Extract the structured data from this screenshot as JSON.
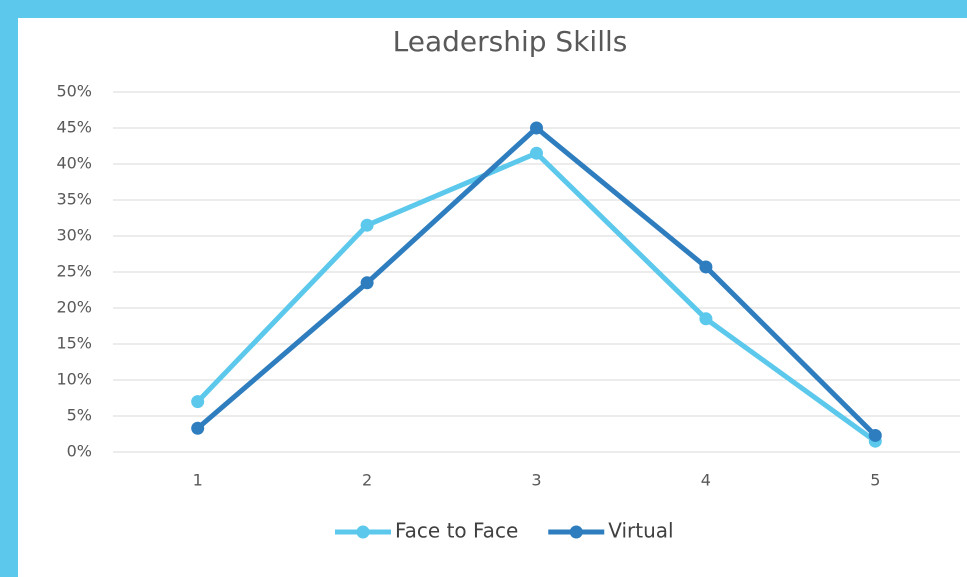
{
  "chart_data": {
    "type": "line",
    "title": "Leadership Skills",
    "categories": [
      "1",
      "2",
      "3",
      "4",
      "5"
    ],
    "series": [
      {
        "name": "Face to Face",
        "color": "#5bc8ec",
        "values": [
          7,
          31.5,
          41.5,
          18.5,
          1.5
        ]
      },
      {
        "name": "Virtual",
        "color": "#2e7dbf",
        "values": [
          3.3,
          23.5,
          45,
          25.7,
          2.3
        ]
      }
    ],
    "ylim": [
      0,
      50
    ],
    "yticks": [
      {
        "value": 0,
        "label": "0%"
      },
      {
        "value": 5,
        "label": "5%"
      },
      {
        "value": 10,
        "label": "10%"
      },
      {
        "value": 15,
        "label": "15%"
      },
      {
        "value": 20,
        "label": "20%"
      },
      {
        "value": 25,
        "label": "25%"
      },
      {
        "value": 30,
        "label": "30%"
      },
      {
        "value": 35,
        "label": "35%"
      },
      {
        "value": 40,
        "label": "40%"
      },
      {
        "value": 45,
        "label": "45%"
      },
      {
        "value": 50,
        "label": "50%"
      }
    ],
    "grid": true,
    "legend": "bottom"
  }
}
